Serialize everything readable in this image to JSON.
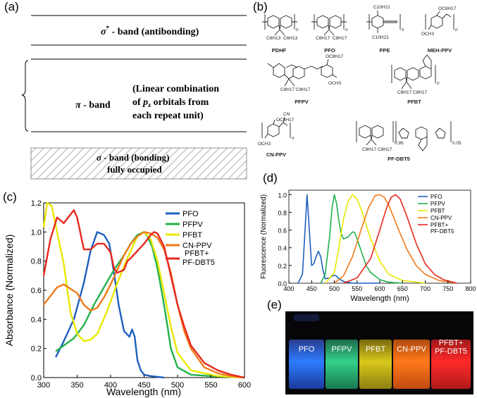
{
  "panels": {
    "a": "(a)",
    "b": "(b)",
    "c": "(c)",
    "d": "(d)",
    "e": "(e)"
  },
  "band_diagram": {
    "sigma_star_symbol": "σ",
    "sigma_star_sup": "*",
    "sigma_star_text": " - band  (antibonding)",
    "pi_symbol": "π",
    "pi_text": " - band",
    "lc_line1": "(Linear combination",
    "lc_line2_a": "of ",
    "lc_line2_p": "p",
    "lc_line2_z": "z",
    "lc_line2_b": " orbitals  from",
    "lc_line3": "each repeat unit)",
    "sigma_symbol": "σ",
    "sigma_text": " - band (bonding)",
    "sigma_text2": "fully occupied"
  },
  "molecules": {
    "names": [
      "PDHF",
      "PFO",
      "PPE",
      "MEH-PPV",
      "PFPV",
      "PFBT",
      "CN-PPV",
      "PF-DBT5"
    ],
    "subs": {
      "c6h13": "C6H13",
      "c8h17": "C8H17",
      "c10h21": "C10H21",
      "oc8h17": "OC8H17",
      "och3": "OCH3",
      "cn": "CN",
      "n": "n",
      "frac95": "0.95",
      "frac05": "0.05"
    }
  },
  "absorbance_chart": {
    "ylabel": "Absorbance (Normalized)",
    "xlabel": "Wavelength (nm)",
    "x_ticks": [
      "300",
      "350",
      "400",
      "450",
      "500",
      "550",
      "600"
    ],
    "y_ticks": [
      "0.0",
      "0.2",
      "0.4",
      "0.6",
      "0.8",
      "1.0",
      "1.2"
    ],
    "legend": [
      "PFO",
      "PFPV",
      "PFBT",
      "CN-PPV",
      "PFBT+",
      "PF-DBT5"
    ]
  },
  "fluorescence_chart": {
    "ylabel": "Fluorescence (Normalized)",
    "xlabel": "Wavelength (nm)",
    "x_ticks": [
      "400",
      "450",
      "500",
      "550",
      "600",
      "650",
      "700",
      "750",
      "800"
    ],
    "y_ticks": [
      "0.0",
      "0.2",
      "0.4",
      "0.6",
      "0.8",
      "1.0"
    ],
    "legend": [
      "PFO",
      "PFPV",
      "PFBT",
      "CN-PPV",
      "PFBT+",
      "PF-DBT5"
    ]
  },
  "vials": {
    "labels": [
      "PFO",
      "PFPV",
      "PFBT",
      "CN-PPV",
      "PFBT+"
    ],
    "last_line2": "PF-DBT5"
  },
  "colors": {
    "pfo": "#1f5fbf",
    "pfpv": "#22b14c",
    "pfbt": "#e8e800",
    "cnppv": "#f07a1a",
    "pfdbt5": "#e8281e"
  },
  "chart_data": [
    {
      "type": "line",
      "title": "",
      "xlabel": "Wavelength (nm)",
      "ylabel": "Absorbance (Normalized)",
      "xlim": [
        300,
        600
      ],
      "ylim": [
        0,
        1.2
      ],
      "series": [
        {
          "name": "PFO",
          "color": "#1f5fbf",
          "x": [
            318,
            330,
            345,
            360,
            370,
            380,
            390,
            398,
            405,
            412,
            420,
            428,
            432,
            436,
            440,
            445,
            450,
            460,
            480
          ],
          "y": [
            0.14,
            0.25,
            0.4,
            0.65,
            0.87,
            1.0,
            0.98,
            0.92,
            0.72,
            0.5,
            0.32,
            0.28,
            0.33,
            0.28,
            0.12,
            0.05,
            0.02,
            0.01,
            0.0
          ]
        },
        {
          "name": "PFPV",
          "color": "#22b14c",
          "x": [
            318,
            330,
            345,
            360,
            375,
            390,
            405,
            420,
            430,
            440,
            450,
            455,
            462,
            470,
            478,
            485,
            490,
            500,
            520,
            550,
            600
          ],
          "y": [
            0.18,
            0.22,
            0.27,
            0.36,
            0.5,
            0.62,
            0.74,
            0.84,
            0.92,
            0.98,
            1.0,
            0.97,
            0.9,
            0.75,
            0.55,
            0.35,
            0.2,
            0.07,
            0.02,
            0.01,
            0.0
          ]
        },
        {
          "name": "PFBT",
          "color": "#e8e800",
          "x": [
            300,
            305,
            312,
            320,
            330,
            340,
            350,
            360,
            370,
            380,
            395,
            410,
            425,
            440,
            450,
            460,
            470,
            480,
            490,
            500,
            520,
            560,
            600
          ],
          "y": [
            1.03,
            1.2,
            1.18,
            1.0,
            0.78,
            0.45,
            0.3,
            0.25,
            0.26,
            0.3,
            0.46,
            0.65,
            0.82,
            0.97,
            1.0,
            0.95,
            0.8,
            0.58,
            0.35,
            0.17,
            0.05,
            0.01,
            0.0
          ]
        },
        {
          "name": "CN-PPV",
          "color": "#f07a1a",
          "x": [
            300,
            310,
            320,
            330,
            340,
            350,
            360,
            370,
            380,
            390,
            400,
            410,
            420,
            430,
            440,
            450,
            460,
            470,
            480,
            490,
            500,
            510,
            520,
            540,
            560,
            580,
            600
          ],
          "y": [
            0.5,
            0.56,
            0.62,
            0.64,
            0.61,
            0.58,
            0.5,
            0.46,
            0.48,
            0.55,
            0.64,
            0.74,
            0.84,
            0.92,
            0.97,
            1.0,
            0.99,
            0.96,
            0.88,
            0.72,
            0.5,
            0.32,
            0.2,
            0.07,
            0.03,
            0.01,
            0.0
          ]
        },
        {
          "name": "PFBT+ PF-DBT5",
          "color": "#e8281e",
          "x": [
            300,
            310,
            320,
            330,
            340,
            345,
            350,
            360,
            370,
            380,
            390,
            400,
            405,
            410,
            420,
            425,
            430,
            440,
            450,
            460,
            465,
            470,
            480,
            490,
            500,
            510,
            520,
            540,
            560,
            580,
            600
          ],
          "y": [
            0.7,
            0.95,
            1.1,
            1.06,
            1.12,
            1.15,
            1.1,
            0.88,
            0.88,
            0.92,
            0.92,
            0.86,
            0.75,
            0.72,
            0.74,
            0.8,
            0.82,
            0.87,
            0.92,
            0.98,
            1.0,
            0.99,
            0.9,
            0.7,
            0.5,
            0.35,
            0.22,
            0.1,
            0.05,
            0.02,
            0.0
          ]
        }
      ]
    },
    {
      "type": "line",
      "title": "",
      "xlabel": "Wavelength (nm)",
      "ylabel": "Fluorescence (Normalized)",
      "xlim": [
        400,
        800
      ],
      "ylim": [
        0,
        1.05
      ],
      "series": [
        {
          "name": "PFO",
          "color": "#1f5fbf",
          "x": [
            420,
            430,
            435,
            440,
            445,
            450,
            455,
            460,
            465,
            470,
            475,
            480,
            490,
            495,
            500,
            505,
            510,
            520,
            540,
            600
          ],
          "y": [
            0.0,
            0.1,
            0.55,
            1.0,
            0.6,
            0.2,
            0.22,
            0.3,
            0.36,
            0.3,
            0.15,
            0.05,
            0.06,
            0.08,
            0.09,
            0.08,
            0.05,
            0.02,
            0.0,
            0.0
          ]
        },
        {
          "name": "PFPV",
          "color": "#22b14c",
          "x": [
            470,
            480,
            490,
            495,
            500,
            505,
            510,
            515,
            520,
            530,
            540,
            545,
            550,
            560,
            570,
            580,
            600,
            620,
            650
          ],
          "y": [
            0.0,
            0.1,
            0.55,
            0.85,
            1.0,
            0.9,
            0.7,
            0.56,
            0.5,
            0.52,
            0.58,
            0.57,
            0.5,
            0.35,
            0.2,
            0.12,
            0.04,
            0.01,
            0.0
          ]
        },
        {
          "name": "PFBT",
          "color": "#e8e800",
          "x": [
            480,
            500,
            510,
            520,
            530,
            540,
            550,
            560,
            570,
            580,
            600,
            620,
            650,
            700
          ],
          "y": [
            0.0,
            0.12,
            0.4,
            0.72,
            0.92,
            1.0,
            0.95,
            0.82,
            0.66,
            0.5,
            0.25,
            0.1,
            0.03,
            0.0
          ]
        },
        {
          "name": "CN-PPV",
          "color": "#f07a1a",
          "x": [
            500,
            520,
            540,
            560,
            575,
            590,
            600,
            610,
            620,
            640,
            660,
            680,
            700,
            730,
            770
          ],
          "y": [
            0.0,
            0.08,
            0.3,
            0.62,
            0.85,
            0.99,
            1.0,
            0.97,
            0.88,
            0.62,
            0.38,
            0.2,
            0.1,
            0.03,
            0.0
          ]
        },
        {
          "name": "PFBT+ PF-DBT5",
          "color": "#e8281e",
          "x": [
            520,
            550,
            580,
            600,
            615,
            625,
            635,
            645,
            660,
            680,
            700,
            720,
            740,
            770
          ],
          "y": [
            0.0,
            0.06,
            0.28,
            0.6,
            0.85,
            0.97,
            1.0,
            0.95,
            0.75,
            0.45,
            0.22,
            0.1,
            0.04,
            0.0
          ]
        }
      ]
    }
  ]
}
